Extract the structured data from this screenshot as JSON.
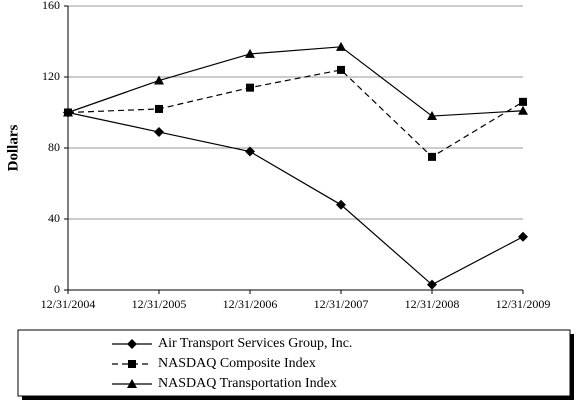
{
  "chart_data": {
    "type": "line",
    "y_label": "Dollars",
    "categories": [
      "12/31/2004",
      "12/31/2005",
      "12/31/2006",
      "12/31/2007",
      "12/31/2008",
      "12/31/2009"
    ],
    "series": [
      {
        "name": "Air Transport Services Group, Inc.",
        "color": "#000000",
        "marker": "diamond",
        "dashed": false,
        "values": [
          100,
          89,
          78,
          48,
          3,
          30
        ]
      },
      {
        "name": "NASDAQ Composite Index",
        "color": "#000000",
        "marker": "square",
        "dashed": true,
        "values": [
          100,
          102,
          114,
          124,
          75,
          106
        ]
      },
      {
        "name": "NASDAQ Transportation Index",
        "color": "#000000",
        "marker": "triangle",
        "dashed": false,
        "values": [
          100,
          118,
          133,
          137,
          98,
          101
        ]
      }
    ],
    "ylim": [
      0,
      160
    ],
    "yticks": [
      0,
      40,
      80,
      120,
      160
    ],
    "grid": true
  }
}
